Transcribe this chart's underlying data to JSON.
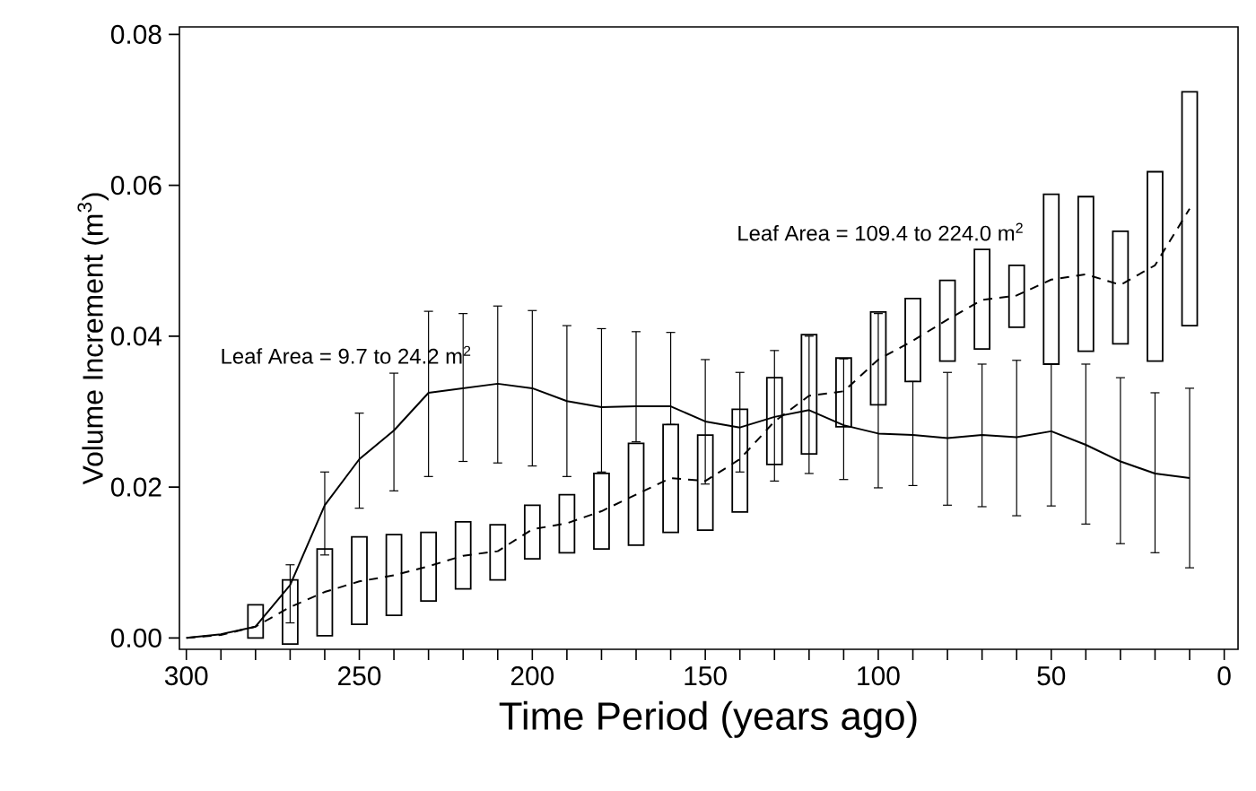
{
  "chart_data": {
    "type": "line",
    "xlabel": "Time Period (years ago)",
    "ylabel": "Volume Increment (m$^{3}$)",
    "xlim": [
      302,
      -4
    ],
    "ylim": [
      -0.0015,
      0.081
    ],
    "xticks": [
      300,
      {
        "value": 290,
        "label": null
      },
      {
        "value": 280,
        "label": null
      },
      {
        "value": 270,
        "label": null
      },
      {
        "value": 260,
        "label": null
      },
      250,
      {
        "value": 240,
        "label": null
      },
      {
        "value": 230,
        "label": null
      },
      {
        "value": 220,
        "label": null
      },
      {
        "value": 210,
        "label": null
      },
      200,
      {
        "value": 190,
        "label": null
      },
      {
        "value": 180,
        "label": null
      },
      {
        "value": 170,
        "label": null
      },
      {
        "value": 160,
        "label": null
      },
      150,
      {
        "value": 140,
        "label": null
      },
      {
        "value": 130,
        "label": null
      },
      {
        "value": 120,
        "label": null
      },
      {
        "value": 110,
        "label": null
      },
      100,
      {
        "value": 90,
        "label": null
      },
      {
        "value": 80,
        "label": null
      },
      {
        "value": 70,
        "label": null
      },
      {
        "value": 60,
        "label": null
      },
      50,
      {
        "value": 40,
        "label": null
      },
      {
        "value": 30,
        "label": null
      },
      {
        "value": 20,
        "label": null
      },
      {
        "value": 10,
        "label": null
      },
      0
    ],
    "yticks": [
      {
        "value": 0,
        "label": "0.00"
      },
      {
        "value": 0.02,
        "label": "0.02"
      },
      {
        "value": 0.04,
        "label": "0.04"
      },
      {
        "value": 0.06,
        "label": "0.06"
      },
      {
        "value": 0.08,
        "label": "0.08"
      }
    ],
    "grid": false,
    "marker": "none",
    "series": [
      {
        "type": "bar",
        "color": "#ffffff",
        "x": [
          280,
          270,
          260,
          250,
          240,
          230,
          220,
          210,
          200,
          190,
          180,
          170,
          160,
          150,
          140,
          130,
          120,
          110,
          100,
          90,
          80,
          70,
          60,
          50,
          40,
          30,
          20,
          10
        ],
        "base": [
          0.0,
          -0.0008,
          0.0003,
          0.0018,
          0.003,
          0.0049,
          0.0065,
          0.0077,
          0.0105,
          0.0113,
          0.0118,
          0.0123,
          0.014,
          0.0143,
          0.0167,
          0.023,
          0.0244,
          0.028,
          0.0309,
          0.034,
          0.0367,
          0.0383,
          0.0412,
          0.0363,
          0.038,
          0.039,
          0.0367,
          0.0414
        ],
        "values": [
          0.0044,
          0.0085,
          0.0115,
          0.0116,
          0.0107,
          0.0091,
          0.0089,
          0.0073,
          0.0071,
          0.0077,
          0.01,
          0.0135,
          0.0143,
          0.0126,
          0.0136,
          0.0115,
          0.0158,
          0.0091,
          0.0123,
          0.011,
          0.0107,
          0.0132,
          0.0082,
          0.0225,
          0.0205,
          0.0149,
          0.0251,
          0.031
        ]
      },
      {
        "type": "line",
        "name": "Leaf Area = 9.7 to 24.2 m$^{2}$",
        "color": "#000000",
        "line_style": "solid",
        "x": [
          300,
          290,
          280,
          270,
          260,
          250,
          240,
          230,
          220,
          210,
          200,
          190,
          180,
          170,
          160,
          150,
          140,
          130,
          120,
          110,
          100,
          90,
          80,
          70,
          60,
          50,
          40,
          30,
          20,
          10
        ],
        "values": [
          0.0,
          0.0005,
          0.0015,
          0.007,
          0.0176,
          0.0237,
          0.0275,
          0.0325,
          0.0331,
          0.0337,
          0.0331,
          0.0314,
          0.0306,
          0.0307,
          0.0307,
          0.0287,
          0.0279,
          0.0293,
          0.0302,
          0.0282,
          0.0271,
          0.0269,
          0.0265,
          0.0269,
          0.0266,
          0.0274,
          0.0256,
          0.0234,
          0.0218,
          0.0212
        ],
        "errors": [
          null,
          null,
          null,
          [
            0.002,
            0.0097
          ],
          [
            0.011,
            0.022
          ],
          [
            0.0172,
            0.0298
          ],
          [
            0.0195,
            0.0351
          ],
          [
            0.0214,
            0.0433
          ],
          [
            0.0234,
            0.043
          ],
          [
            0.0232,
            0.044
          ],
          [
            0.0228,
            0.0434
          ],
          [
            0.0214,
            0.0414
          ],
          [
            0.022,
            0.041
          ],
          [
            0.026,
            0.0406
          ],
          [
            0.0283,
            0.0405
          ],
          [
            0.0204,
            0.0369
          ],
          [
            0.022,
            0.0352
          ],
          [
            0.0208,
            0.0381
          ],
          [
            0.0218,
            0.04
          ],
          [
            0.021,
            0.037
          ],
          [
            0.0199,
            0.043
          ],
          [
            0.0202,
            0.034
          ],
          [
            0.0176,
            0.0352
          ],
          [
            0.0174,
            0.0363
          ],
          [
            0.0162,
            0.0368
          ],
          [
            0.0175,
            0.0363
          ],
          [
            0.0151,
            0.0363
          ],
          [
            0.0125,
            0.0345
          ],
          [
            0.0113,
            0.0325
          ],
          [
            0.0093,
            0.0331
          ]
        ]
      },
      {
        "type": "line",
        "name": "Leaf Area = 109.4 to 224.0 m$^{2}$",
        "color": "#000000",
        "line_style": "dashed",
        "x": [
          300,
          290,
          280,
          270,
          260,
          250,
          240,
          230,
          220,
          210,
          200,
          190,
          180,
          170,
          160,
          150,
          140,
          130,
          120,
          110,
          100,
          90,
          80,
          70,
          60,
          50,
          40,
          30,
          20,
          10
        ],
        "values": [
          0.0,
          0.0004,
          0.0015,
          0.0041,
          0.0061,
          0.0075,
          0.0083,
          0.0095,
          0.0109,
          0.0115,
          0.0144,
          0.0152,
          0.0168,
          0.019,
          0.0212,
          0.0208,
          0.0237,
          0.0287,
          0.0321,
          0.0327,
          0.0369,
          0.0394,
          0.0422,
          0.0448,
          0.0454,
          0.0475,
          0.0482,
          0.0468,
          0.0494,
          0.0569
        ]
      }
    ]
  }
}
